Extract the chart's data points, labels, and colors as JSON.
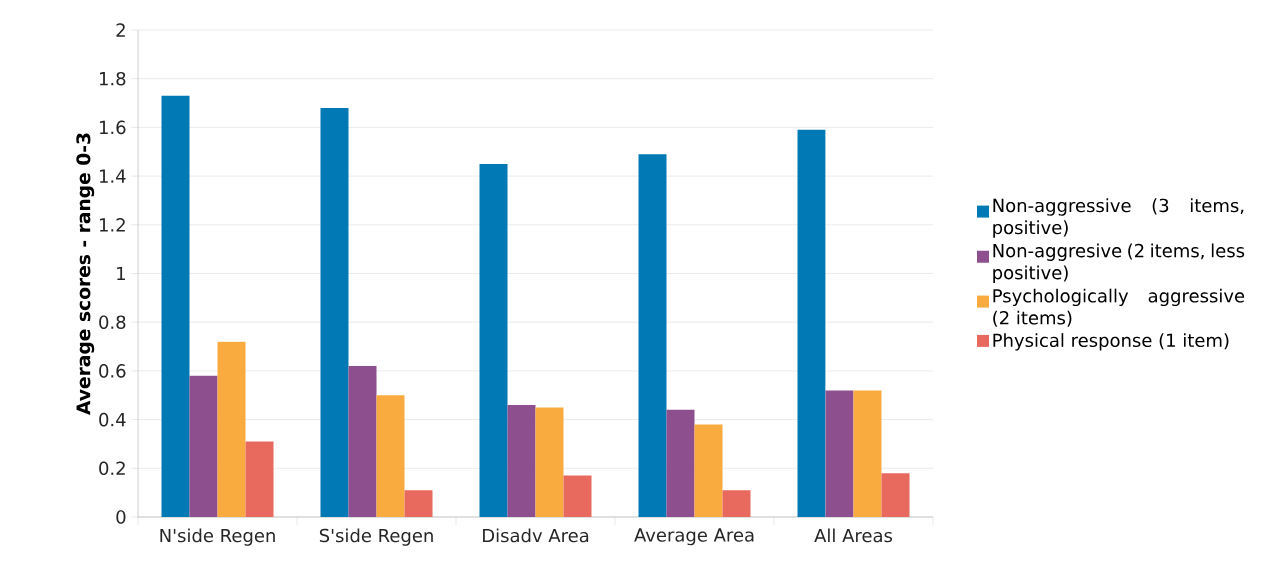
{
  "chart_data": {
    "type": "bar",
    "ylabel": "Average scores - range 0-3",
    "categories": [
      "N'side Regen",
      "S'side Regen",
      "Disadv Area",
      "Average Area",
      "All Areas"
    ],
    "series": [
      {
        "name": "Non-aggressive (3 items, positive)",
        "color": "#0079b5",
        "values": [
          1.73,
          1.68,
          1.45,
          1.49,
          1.59
        ]
      },
      {
        "name": "Non-aggresive (2 items, less positive)",
        "color": "#8e4f8e",
        "values": [
          0.58,
          0.62,
          0.46,
          0.44,
          0.52
        ]
      },
      {
        "name": "Psychologically aggressive (2 items)",
        "color": "#f9ab3f",
        "values": [
          0.72,
          0.5,
          0.45,
          0.38,
          0.52
        ]
      },
      {
        "name": "Physical response (1 item)",
        "color": "#e86a5f",
        "values": [
          0.31,
          0.11,
          0.17,
          0.11,
          0.18
        ]
      }
    ],
    "ylim": [
      0,
      2
    ],
    "yticks": [
      0,
      0.2,
      0.4,
      0.6,
      0.8,
      1,
      1.2,
      1.4,
      1.6,
      1.8,
      2
    ],
    "grid": "y",
    "legend": "right"
  }
}
